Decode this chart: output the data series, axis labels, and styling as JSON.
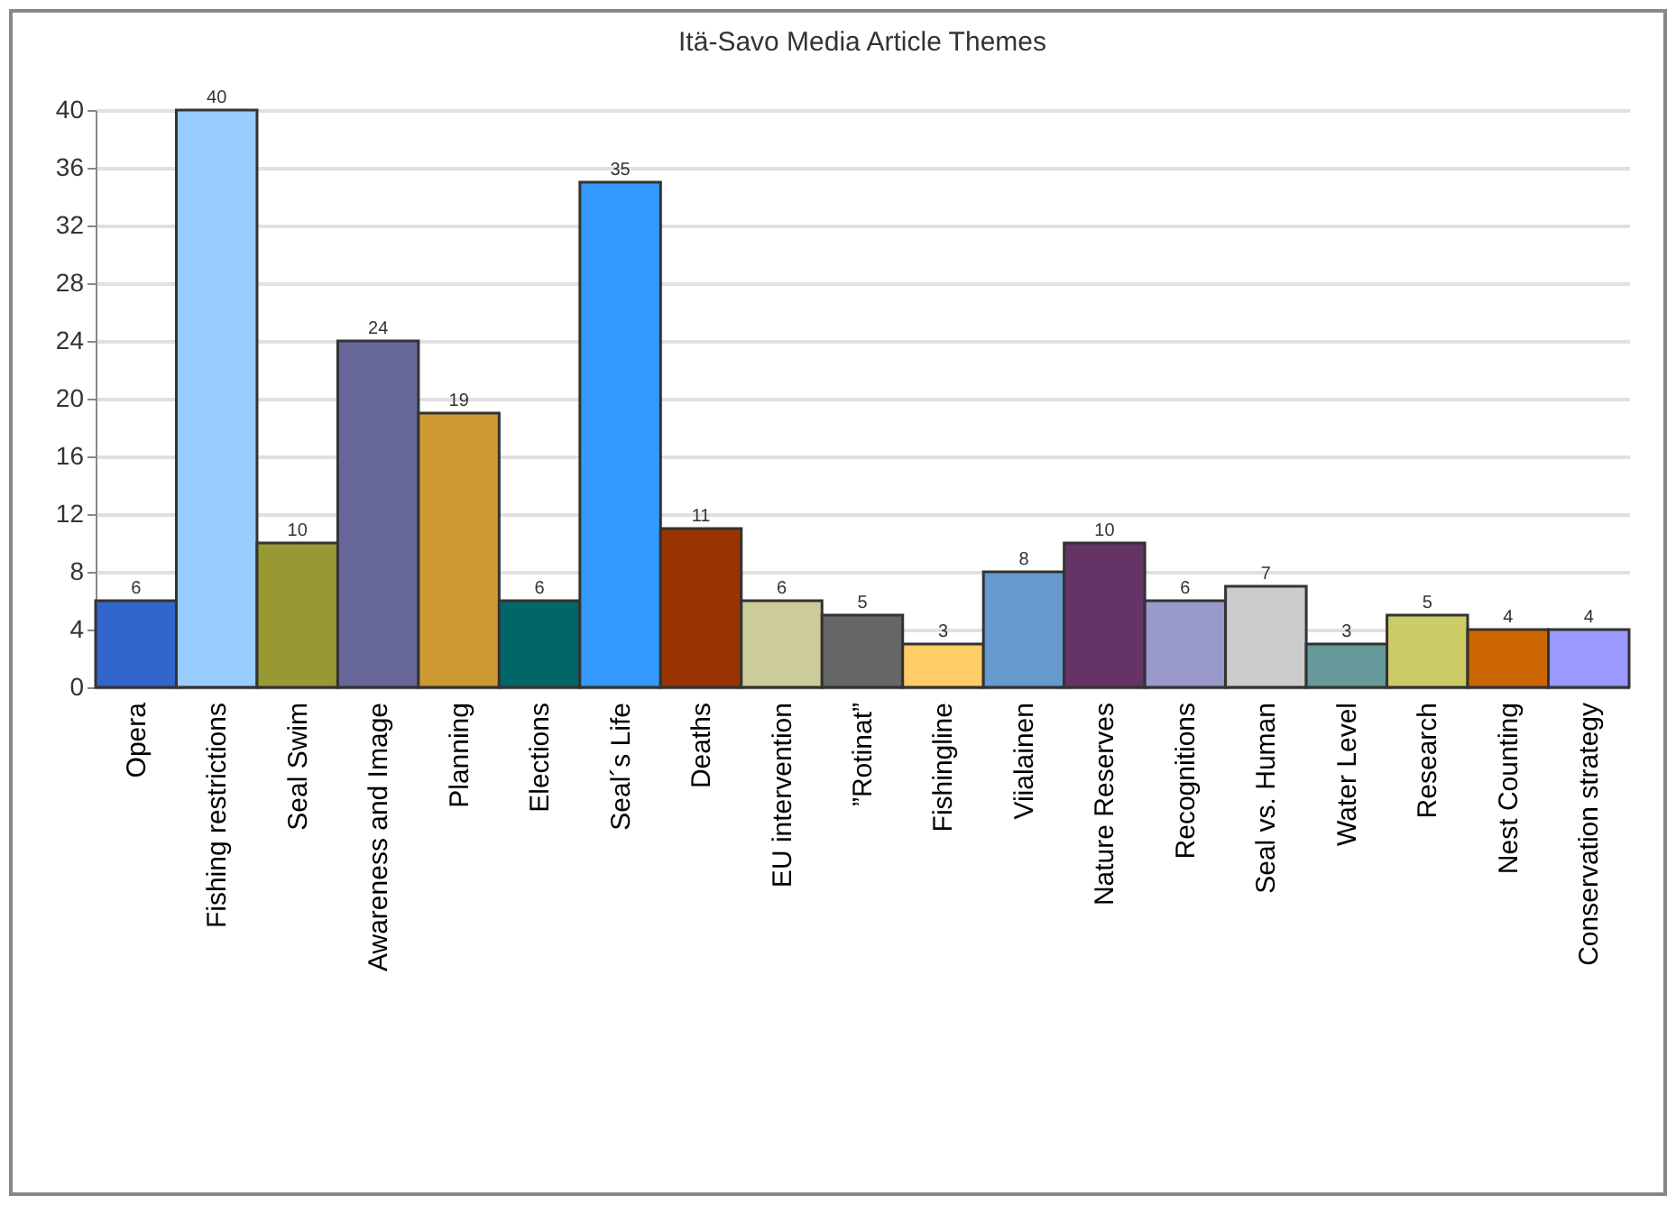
{
  "chart_data": {
    "type": "bar",
    "title": "Itä-Savo Media Article Themes",
    "categories": [
      "Opera",
      "Fishing restrictions",
      "Seal Swim",
      "Awareness and Image",
      "Planning",
      "Elections",
      "Seal´s Life",
      "Deaths",
      "EU intervention",
      "”Rotinat”",
      "Fishingline",
      "Viialainen",
      "Nature Reserves",
      "Recognitions",
      "Seal vs. Human",
      "Water Level",
      "Research",
      "Nest Counting",
      "Conservation strategy"
    ],
    "values": [
      6,
      40,
      10,
      24,
      19,
      6,
      35,
      11,
      6,
      5,
      3,
      8,
      10,
      6,
      7,
      3,
      5,
      4,
      4
    ],
    "colors": [
      "#3366cc",
      "#99ccff",
      "#999933",
      "#666699",
      "#cc9933",
      "#006666",
      "#3399ff",
      "#993300",
      "#cccc99",
      "#666666",
      "#ffcc66",
      "#6699cc",
      "#663366",
      "#9999cc",
      "#cccccc",
      "#669999",
      "#cccc66",
      "#cc6600",
      "#9999ff"
    ],
    "ylim": [
      0,
      40
    ],
    "yticks": [
      0,
      4,
      8,
      12,
      16,
      20,
      24,
      28,
      32,
      36,
      40
    ],
    "grid": "y",
    "data_labels": true
  }
}
